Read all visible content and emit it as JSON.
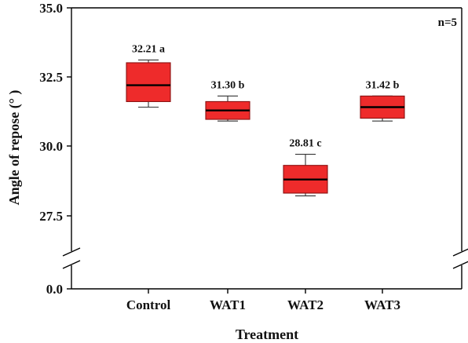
{
  "chart_data": {
    "type": "box",
    "xlabel": "Treatment",
    "ylabel": "Angle of repose (° )",
    "note": "n=5",
    "y_ticks": [
      "0.0",
      "27.5",
      "30.0",
      "32.5",
      "35.0"
    ],
    "ylim_upper": [
      26.5,
      35.0
    ],
    "ylim_lower": [
      0,
      0
    ],
    "axis_break": true,
    "colors": {
      "box_fill": "#ee2b2b",
      "box_stroke": "#8a1010",
      "median": "#000000"
    },
    "categories": [
      "Control",
      "WAT1",
      "WAT2",
      "WAT3"
    ],
    "boxes": [
      {
        "category": "Control",
        "min": 31.42,
        "q1": 31.62,
        "median": 32.21,
        "q3": 33.02,
        "max": 33.12,
        "label": "32.21 a"
      },
      {
        "category": "WAT1",
        "min": 30.92,
        "q1": 30.98,
        "median": 31.3,
        "q3": 31.62,
        "max": 31.82,
        "label": "31.30 b"
      },
      {
        "category": "WAT2",
        "min": 28.22,
        "q1": 28.32,
        "median": 28.81,
        "q3": 29.32,
        "max": 29.72,
        "label": "28.81 c"
      },
      {
        "category": "WAT3",
        "min": 30.92,
        "q1": 31.02,
        "median": 31.42,
        "q3": 31.82,
        "max": 31.82,
        "label": "31.42 b"
      }
    ]
  }
}
